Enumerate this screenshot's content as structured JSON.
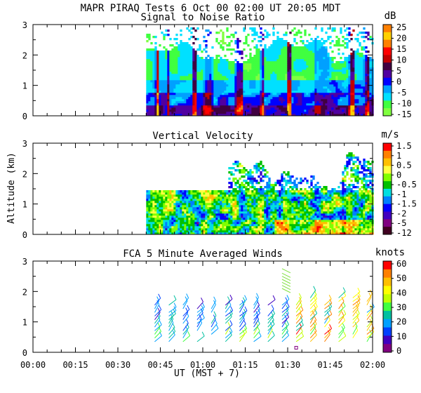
{
  "header": {
    "line1": "MAPR PIRAQ Tests  6 Oct 00  02:00 UT  20:05  MDT"
  },
  "chart_data": [
    {
      "type": "heatmap",
      "title": "Signal to Noise Ratio",
      "units": "dB",
      "ylabel": "",
      "ylim": [
        0,
        3
      ],
      "yticks": [
        "0",
        "1",
        "2",
        "3"
      ],
      "xlim_minutes": [
        0,
        120
      ],
      "data_start_minutes": 40,
      "colorbar_labels": [
        "25",
        "20",
        "15",
        "10",
        "5",
        "0",
        "-5",
        "-10",
        "-15"
      ],
      "colorbar_colors": [
        "#ff8000",
        "#ffd000",
        "#ff8000",
        "#ff0000",
        "#c00000",
        "#400040",
        "#5000a0",
        "#0000ff",
        "#00a0ff",
        "#00e0ff",
        "#40ff40",
        "#80ff40"
      ]
    },
    {
      "type": "heatmap",
      "title": "Vertical Velocity",
      "units": "m/s",
      "ylabel": "Altitude (km)",
      "ylim": [
        0,
        3
      ],
      "yticks": [
        "0",
        "1",
        "2",
        "3"
      ],
      "xlim_minutes": [
        0,
        120
      ],
      "data_start_minutes": 40,
      "colorbar_labels": [
        "1.5",
        "1",
        "0.5",
        "0",
        "-0.5",
        "-1",
        "-1.5",
        "-2",
        "-5",
        "-12"
      ],
      "colorbar_colors": [
        "#ff0000",
        "#ff8000",
        "#ffc000",
        "#ffff40",
        "#80ff00",
        "#00c000",
        "#00e0e0",
        "#0080ff",
        "#0000ff",
        "#4000c0",
        "#800080",
        "#400020"
      ]
    },
    {
      "type": "scatter",
      "subtype": "wind-barbs",
      "title": "FCA 5 Minute Averaged Winds",
      "units": "knots",
      "ylabel": "",
      "ylim": [
        0,
        3
      ],
      "yticks": [
        "0",
        "1",
        "2",
        "3"
      ],
      "xlim_minutes": [
        0,
        120
      ],
      "barb_times_minutes": [
        43,
        48,
        53,
        58,
        63,
        68,
        73,
        78,
        83,
        88,
        93,
        98,
        103,
        108,
        113,
        118
      ],
      "colorbar_labels": [
        "60",
        "50",
        "40",
        "30",
        "20",
        "10",
        "0"
      ],
      "colorbar_colors": [
        "#ff0000",
        "#ff8000",
        "#ffc000",
        "#ffff00",
        "#c0ff00",
        "#40ff40",
        "#00c0a0",
        "#00a0ff",
        "#0040ff",
        "#4000c0",
        "#800080"
      ]
    }
  ],
  "xaxis": {
    "tick_labels": [
      "00:00",
      "00:15",
      "00:30",
      "00:45",
      "01:00",
      "01:15",
      "01:30",
      "01:45",
      "02:00"
    ],
    "label": "UT  (MST + 7)"
  }
}
